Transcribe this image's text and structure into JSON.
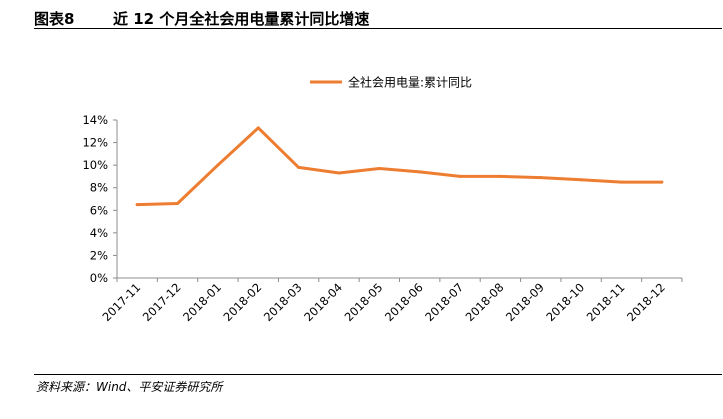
{
  "figure": {
    "label": "图表8",
    "title": "近 12 个月全社会用电量累计同比增速",
    "source": "资料来源：Wind、平安证券研究所"
  },
  "chart_data": {
    "type": "line",
    "categories": [
      "2017-11",
      "2017-12",
      "2018-01",
      "2018-02",
      "2018-03",
      "2018-04",
      "2018-05",
      "2018-06",
      "2018-07",
      "2018-08",
      "2018-09",
      "2018-10",
      "2018-11",
      "2018-12"
    ],
    "series": [
      {
        "name": "全社会用电量:累计同比",
        "color": "#ED7D31",
        "values": [
          6.5,
          6.6,
          10.0,
          13.3,
          9.8,
          9.3,
          9.7,
          9.4,
          9.0,
          9.0,
          8.9,
          8.7,
          8.5,
          8.5
        ]
      }
    ],
    "yticks": [
      "0%",
      "2%",
      "4%",
      "6%",
      "8%",
      "10%",
      "12%",
      "14%"
    ],
    "ylim": [
      0,
      14
    ],
    "legend_position": "top-center",
    "grid": false,
    "xlabel": "",
    "ylabel": ""
  }
}
